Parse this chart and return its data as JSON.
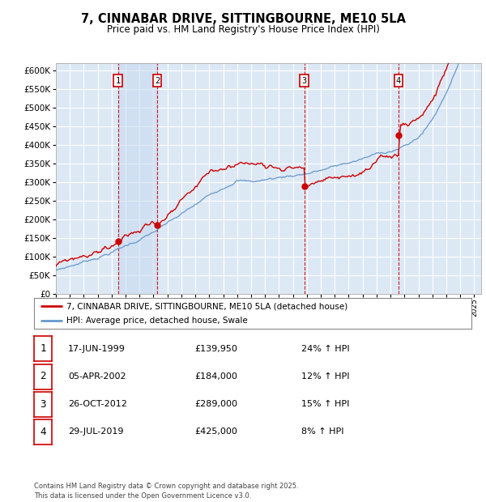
{
  "title": "7, CINNABAR DRIVE, SITTINGBOURNE, ME10 5LA",
  "subtitle": "Price paid vs. HM Land Registry's House Price Index (HPI)",
  "ylim": [
    0,
    620000
  ],
  "yticks": [
    0,
    50000,
    100000,
    150000,
    200000,
    250000,
    300000,
    350000,
    400000,
    450000,
    500000,
    550000,
    600000
  ],
  "xlim_start": 1995.0,
  "xlim_end": 2025.5,
  "background_color": "#ffffff",
  "plot_bg_color": "#dde8f5",
  "grid_color": "#ffffff",
  "sale_dates": [
    1999.46,
    2002.26,
    2012.81,
    2019.57
  ],
  "sale_prices": [
    139950,
    184000,
    289000,
    425000
  ],
  "sale_labels": [
    "1",
    "2",
    "3",
    "4"
  ],
  "vline_color": "#cc0000",
  "legend_entries": [
    "7, CINNABAR DRIVE, SITTINGBOURNE, ME10 5LA (detached house)",
    "HPI: Average price, detached house, Swale"
  ],
  "table_rows": [
    [
      "1",
      "17-JUN-1999",
      "£139,950",
      "24% ↑ HPI"
    ],
    [
      "2",
      "05-APR-2002",
      "£184,000",
      "12% ↑ HPI"
    ],
    [
      "3",
      "26-OCT-2012",
      "£289,000",
      "15% ↑ HPI"
    ],
    [
      "4",
      "29-JUL-2019",
      "£425,000",
      "8% ↑ HPI"
    ]
  ],
  "footer": "Contains HM Land Registry data © Crown copyright and database right 2025.\nThis data is licensed under the Open Government Licence v3.0.",
  "red_line_color": "#cc0000",
  "blue_line_color": "#6699cc",
  "shade_color": "#c5d8f0"
}
